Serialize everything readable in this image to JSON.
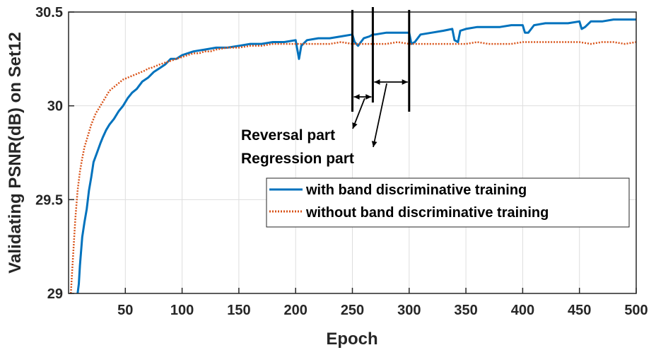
{
  "chart_data": {
    "type": "line",
    "title": "",
    "xlabel": "Epoch",
    "ylabel": "Validating PSNR(dB) on Set12",
    "xlim": [
      0,
      500
    ],
    "ylim": [
      29,
      30.5
    ],
    "xticks": [
      50,
      100,
      150,
      200,
      250,
      300,
      350,
      400,
      450,
      500
    ],
    "yticks": [
      29,
      29.5,
      30,
      30.5
    ],
    "xtick_labels": [
      "50",
      "100",
      "150",
      "200",
      "250",
      "300",
      "350",
      "400",
      "450",
      "500"
    ],
    "ytick_labels": [
      "29",
      "29.5",
      "30",
      "30.5"
    ],
    "grid": true,
    "legend_position": "lower-right",
    "series": [
      {
        "name": "with band discriminative training",
        "style": "solid",
        "color": "#0072BD",
        "x": [
          8,
          9,
          10,
          12,
          14,
          16,
          18,
          20,
          22,
          25,
          28,
          30,
          33,
          36,
          40,
          44,
          48,
          52,
          56,
          60,
          65,
          70,
          75,
          80,
          85,
          90,
          95,
          100,
          110,
          120,
          130,
          140,
          150,
          160,
          170,
          180,
          190,
          200,
          203,
          205,
          210,
          220,
          230,
          240,
          250,
          252,
          255,
          260,
          265,
          268,
          270,
          280,
          290,
          300,
          302,
          305,
          310,
          320,
          330,
          338,
          340,
          343,
          345,
          350,
          360,
          370,
          380,
          390,
          400,
          402,
          405,
          410,
          420,
          430,
          440,
          450,
          452,
          455,
          460,
          470,
          480,
          490,
          500
        ],
        "values": [
          29.0,
          29.05,
          29.15,
          29.3,
          29.38,
          29.45,
          29.55,
          29.62,
          29.7,
          29.75,
          29.8,
          29.83,
          29.87,
          29.9,
          29.93,
          29.97,
          30.0,
          30.04,
          30.07,
          30.09,
          30.13,
          30.15,
          30.18,
          30.2,
          30.22,
          30.25,
          30.25,
          30.27,
          30.29,
          30.3,
          30.31,
          30.31,
          30.32,
          30.33,
          30.33,
          30.34,
          30.34,
          30.35,
          30.25,
          30.32,
          30.35,
          30.36,
          30.36,
          30.37,
          30.38,
          30.34,
          30.32,
          30.36,
          30.37,
          30.38,
          30.38,
          30.39,
          30.39,
          30.39,
          30.33,
          30.34,
          30.38,
          30.39,
          30.4,
          30.41,
          30.35,
          30.34,
          30.4,
          30.41,
          30.42,
          30.42,
          30.42,
          30.43,
          30.43,
          30.39,
          30.39,
          30.43,
          30.44,
          30.44,
          30.44,
          30.45,
          30.41,
          30.42,
          30.45,
          30.45,
          30.46,
          30.46,
          30.46
        ]
      },
      {
        "name": "without band discriminative training",
        "style": "dotted",
        "color": "#D95319",
        "x": [
          2,
          4,
          6,
          8,
          10,
          12,
          14,
          16,
          18,
          20,
          22,
          24,
          26,
          28,
          30,
          32,
          34,
          36,
          40,
          44,
          48,
          52,
          56,
          60,
          64,
          68,
          70,
          72,
          76,
          80,
          85,
          90,
          95,
          100,
          105,
          110,
          115,
          120,
          125,
          130,
          140,
          150,
          160,
          170,
          180,
          190,
          200,
          210,
          220,
          230,
          240,
          250,
          260,
          270,
          280,
          290,
          300,
          310,
          320,
          330,
          340,
          350,
          360,
          370,
          380,
          390,
          400,
          410,
          420,
          430,
          440,
          450,
          460,
          470,
          480,
          490,
          500
        ],
        "values": [
          29.0,
          29.2,
          29.4,
          29.55,
          29.65,
          29.72,
          29.78,
          29.82,
          29.86,
          29.9,
          29.93,
          29.96,
          29.98,
          30.0,
          30.02,
          30.04,
          30.06,
          30.08,
          30.1,
          30.12,
          30.14,
          30.15,
          30.16,
          30.17,
          30.18,
          30.19,
          30.2,
          30.2,
          30.21,
          30.22,
          30.23,
          30.24,
          30.25,
          30.26,
          30.27,
          30.28,
          30.28,
          30.29,
          30.29,
          30.3,
          30.31,
          30.31,
          30.32,
          30.32,
          30.33,
          30.33,
          30.33,
          30.33,
          30.33,
          30.33,
          30.34,
          30.33,
          30.33,
          30.33,
          30.33,
          30.34,
          30.33,
          30.33,
          30.33,
          30.33,
          30.33,
          30.33,
          30.34,
          30.33,
          30.33,
          30.33,
          30.34,
          30.34,
          30.34,
          30.34,
          30.34,
          30.34,
          30.33,
          30.34,
          30.34,
          30.33,
          30.34
        ]
      }
    ],
    "annotations": [
      {
        "text": "Reversal part",
        "range": [
          250,
          268
        ]
      },
      {
        "text": "Regression part",
        "range": [
          268,
          300
        ]
      }
    ]
  },
  "colors": {
    "with_band": "#0072BD",
    "without_band": "#D95319",
    "grid": "#dedede",
    "axis": "#262626"
  }
}
